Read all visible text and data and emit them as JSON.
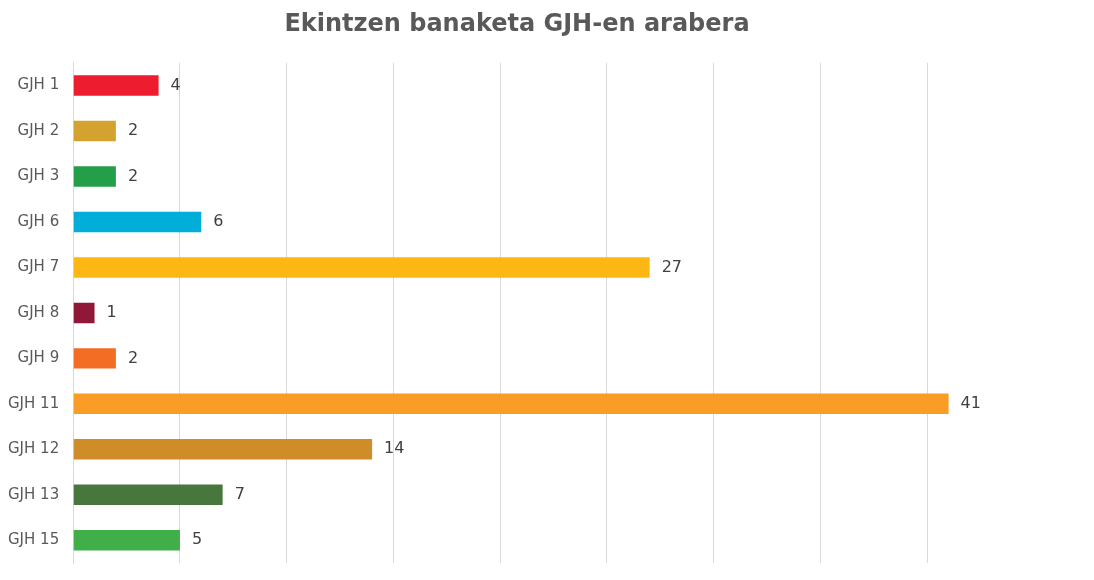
{
  "chart_data": {
    "type": "bar",
    "orientation": "horizontal",
    "title": "Ekintzen banaketa GJH-en arabera",
    "categories": [
      "GJH 1",
      "GJH 2",
      "GJH 3",
      "GJH 6",
      "GJH 7",
      "GJH 8",
      "GJH 9",
      "GJH 11",
      "GJH 12",
      "GJH 13",
      "GJH 15"
    ],
    "values": [
      4,
      2,
      2,
      6,
      27,
      1,
      2,
      41,
      14,
      7,
      5
    ],
    "colors": [
      "#ed1c2e",
      "#d4a32f",
      "#259e4a",
      "#00aed9",
      "#fcb713",
      "#8f1838",
      "#f36d25",
      "#fa9d26",
      "#cf8d2a",
      "#48773e",
      "#40ae49"
    ],
    "xticks": [
      {
        "value": 0,
        "label": null
      },
      {
        "value": 5,
        "label": null
      },
      {
        "value": 10,
        "label": null
      },
      {
        "value": 15,
        "label": null
      },
      {
        "value": 20,
        "label": null
      },
      {
        "value": 25,
        "label": null
      },
      {
        "value": 30,
        "label": null
      },
      {
        "value": 35,
        "label": null
      },
      {
        "value": 40,
        "label": null
      }
    ],
    "tick_labels": "y",
    "grid": "x",
    "data_labels": true,
    "legend": false
  }
}
